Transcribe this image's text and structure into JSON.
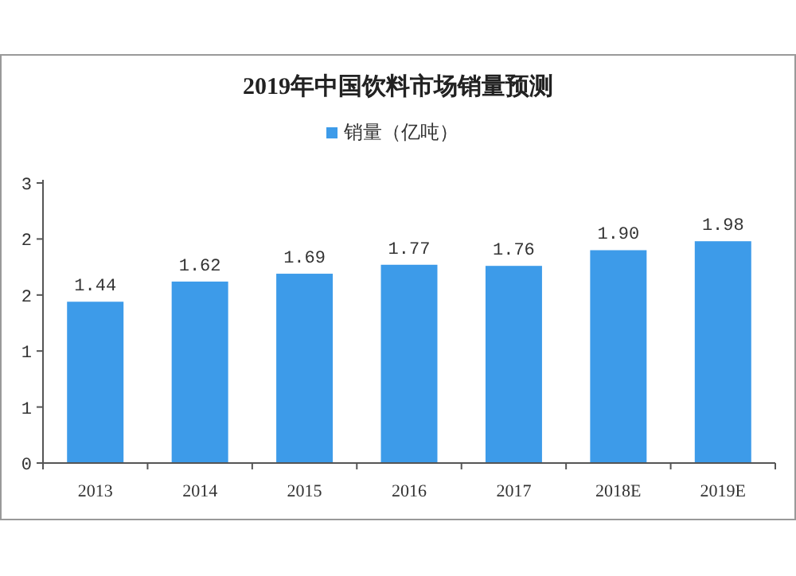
{
  "chart_data": {
    "type": "bar",
    "title": "2019年中国饮料市场销量预测",
    "categories": [
      "2013",
      "2014",
      "2015",
      "2016",
      "2017",
      "2018E",
      "2019E"
    ],
    "series": [
      {
        "name": "销量（亿吨）",
        "color": "#3d9be9",
        "values": [
          1.44,
          1.62,
          1.69,
          1.77,
          1.76,
          1.9,
          1.98
        ],
        "value_labels": [
          "1.44",
          "1.62",
          "1.69",
          "1.77",
          "1.76",
          "1.90",
          "1.98"
        ]
      }
    ],
    "ylim": [
      0,
      2.5
    ],
    "yticks": [
      0,
      {
        "value": 0.5,
        "label": "1"
      },
      1,
      {
        "value": 1.5,
        "label": "2"
      },
      2,
      {
        "value": 2.5,
        "label": "3"
      }
    ],
    "legend": "top",
    "grid": false
  }
}
